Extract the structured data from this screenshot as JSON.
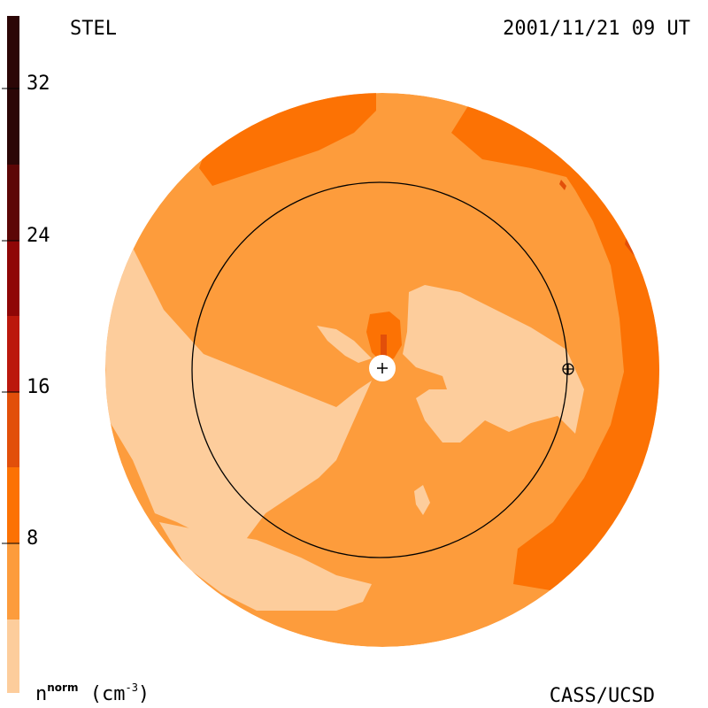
{
  "header": {
    "observatory": "STEL",
    "timestamp": "2001/11/21 09 UT"
  },
  "footer": {
    "quantity": "n",
    "quantity_superscript": "norm",
    "unit": "(cm",
    "unit_exponent": "-3",
    "unit_close": ")",
    "credit": "CASS/UCSD"
  },
  "colorbar": {
    "ticks": [
      "32",
      "24",
      "16",
      "8"
    ],
    "colors": [
      "#fdcd9c",
      "#fd9c3c",
      "#fc7204",
      "#e24f0a",
      "#bb180c",
      "#8f0606",
      "#5d0606",
      "#2c0606"
    ]
  },
  "map": {
    "background_color": "#fd9c3c",
    "markers": [
      "sun-marker",
      "earth-marker",
      "earth-orbit-circle"
    ]
  }
}
